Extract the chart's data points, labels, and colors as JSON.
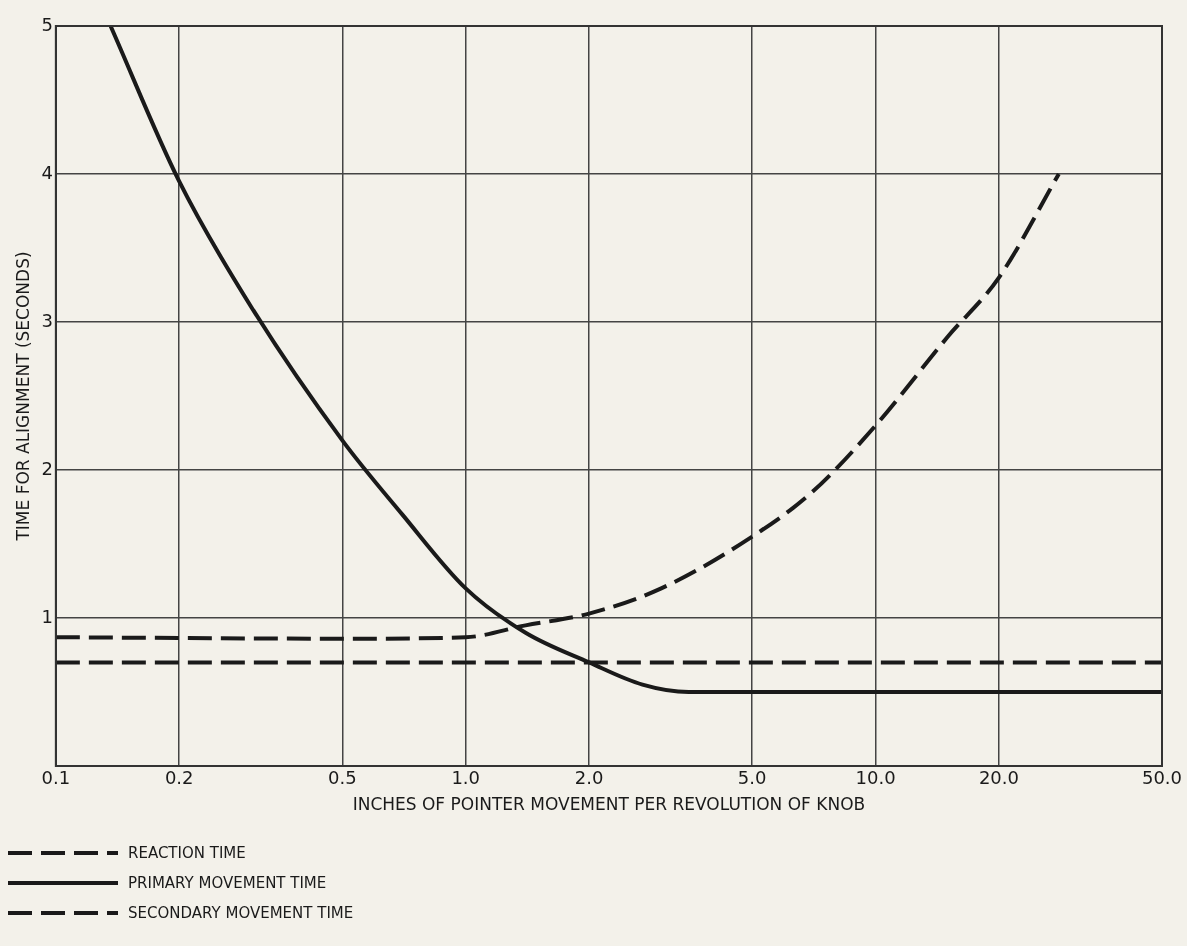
{
  "chart_data": {
    "type": "line",
    "xlabel": "INCHES OF POINTER MOVEMENT PER REVOLUTION OF KNOB",
    "ylabel": "TIME FOR ALIGNMENT (SECONDS)",
    "log": "x",
    "xlim": [
      0.1,
      50
    ],
    "xticks": [
      0.1,
      0.2,
      0.5,
      {
        "value": 1,
        "label": "1.0"
      },
      {
        "value": 2,
        "label": "2.0"
      },
      {
        "value": 5,
        "label": "5.0"
      },
      {
        "value": 10,
        "label": "10.0"
      },
      {
        "value": 20,
        "label": "20.0"
      },
      {
        "value": 50,
        "label": "50.0"
      }
    ],
    "ylim": [
      0,
      5
    ],
    "yticks": [
      1,
      2,
      3,
      4,
      5
    ],
    "grid": true,
    "legend": "bottom left",
    "marker": "none",
    "series": [
      {
        "name": "REACTION TIME",
        "color": "#1a1a1a",
        "line_style": "dashed",
        "x": [
          0.1,
          50
        ],
        "values": [
          0.7,
          0.7
        ]
      },
      {
        "name": "PRIMARY MOVEMENT TIME",
        "color": "#1a1a1a",
        "line_style": "solid",
        "x": [
          0.136,
          0.2,
          0.3,
          0.5,
          0.7,
          1.0,
          1.4,
          2.0,
          2.7,
          3.5,
          50
        ],
        "values": [
          5,
          3.95,
          3.1,
          2.2,
          1.7,
          1.2,
          0.9,
          0.7,
          0.55,
          0.5,
          0.5
        ]
      },
      {
        "name": "SECONDARY MOVEMENT TIME",
        "color": "#1a1a1a",
        "line_style": "dashed",
        "x": [
          0.1,
          0.5,
          1.0,
          1.4,
          2.0,
          3.0,
          5.0,
          7.0,
          10,
          15,
          20,
          28
        ],
        "values": [
          0.87,
          0.86,
          0.87,
          0.95,
          1.03,
          1.2,
          1.55,
          1.85,
          2.3,
          2.9,
          3.3,
          4.0
        ]
      }
    ]
  }
}
